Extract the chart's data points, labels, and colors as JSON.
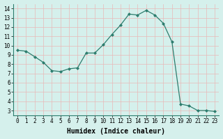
{
  "x": [
    0,
    1,
    2,
    3,
    4,
    5,
    6,
    7,
    8,
    9,
    10,
    11,
    12,
    13,
    14,
    15,
    16,
    17,
    18,
    19,
    20,
    21,
    22,
    23
  ],
  "y": [
    9.5,
    9.4,
    8.8,
    8.2,
    7.3,
    7.2,
    7.5,
    7.6,
    9.2,
    9.2,
    10.1,
    11.2,
    12.2,
    13.4,
    13.3,
    13.8,
    13.3,
    12.4,
    10.4,
    3.7,
    3.5,
    3.0,
    3.0,
    2.9
  ],
  "line_color": "#2d7d6e",
  "marker": "D",
  "marker_size": 2,
  "xlabel": "Humidex (Indice chaleur)",
  "xlim": [
    -0.5,
    23.5
  ],
  "ylim": [
    2.5,
    14.5
  ],
  "yticks": [
    3,
    4,
    5,
    6,
    7,
    8,
    9,
    10,
    11,
    12,
    13,
    14
  ],
  "xticks": [
    0,
    1,
    2,
    3,
    4,
    5,
    6,
    7,
    8,
    9,
    10,
    11,
    12,
    13,
    14,
    15,
    16,
    17,
    18,
    19,
    20,
    21,
    22,
    23
  ],
  "background_color": "#d5f0ec",
  "grid_color": "#c8dcd9",
  "tick_fontsize": 5.5,
  "xlabel_fontsize": 7
}
